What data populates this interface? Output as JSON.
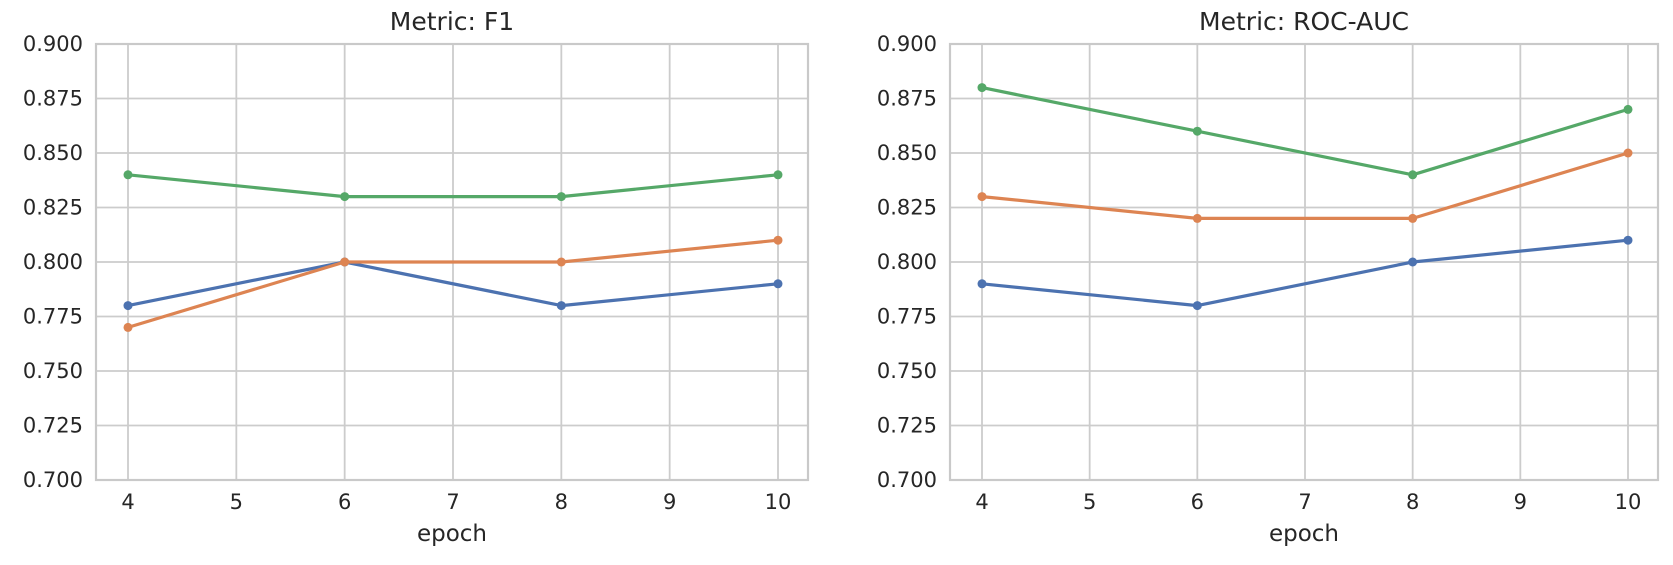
{
  "figure": {
    "background": "#ffffff",
    "text_color": "#262626",
    "grid_color": "#cccccc",
    "spine_color": "#c9c9c9"
  },
  "chart_data": [
    {
      "type": "line",
      "title": "Metric: F1",
      "xlabel": "epoch",
      "ylabel": "",
      "x": [
        4,
        6,
        8,
        10
      ],
      "xticks": [
        4,
        5,
        6,
        7,
        8,
        9,
        10
      ],
      "xlim": [
        4,
        10
      ],
      "yticks": [
        0.7,
        0.725,
        0.75,
        0.775,
        0.8,
        0.825,
        0.85,
        0.875,
        0.9
      ],
      "ylim": [
        0.7,
        0.9
      ],
      "grid": true,
      "legend": "none",
      "marker": "circle",
      "series": [
        {
          "name": "blue",
          "color": "#4C72B0",
          "values": [
            0.78,
            0.8,
            0.78,
            0.79
          ]
        },
        {
          "name": "orange",
          "color": "#DD8452",
          "values": [
            0.77,
            0.8,
            0.8,
            0.81
          ]
        },
        {
          "name": "green",
          "color": "#55A868",
          "values": [
            0.84,
            0.83,
            0.83,
            0.84
          ]
        }
      ]
    },
    {
      "type": "line",
      "title": "Metric: ROC-AUC",
      "xlabel": "epoch",
      "ylabel": "",
      "x": [
        4,
        6,
        8,
        10
      ],
      "xticks": [
        4,
        5,
        6,
        7,
        8,
        9,
        10
      ],
      "xlim": [
        4,
        10
      ],
      "yticks": [
        0.7,
        0.725,
        0.75,
        0.775,
        0.8,
        0.825,
        0.85,
        0.875,
        0.9
      ],
      "ylim": [
        0.7,
        0.9
      ],
      "grid": true,
      "legend": "none",
      "marker": "circle",
      "series": [
        {
          "name": "blue",
          "color": "#4C72B0",
          "values": [
            0.79,
            0.78,
            0.8,
            0.81
          ]
        },
        {
          "name": "orange",
          "color": "#DD8452",
          "values": [
            0.83,
            0.82,
            0.82,
            0.85
          ]
        },
        {
          "name": "green",
          "color": "#55A868",
          "values": [
            0.88,
            0.86,
            0.84,
            0.87
          ]
        }
      ]
    }
  ]
}
